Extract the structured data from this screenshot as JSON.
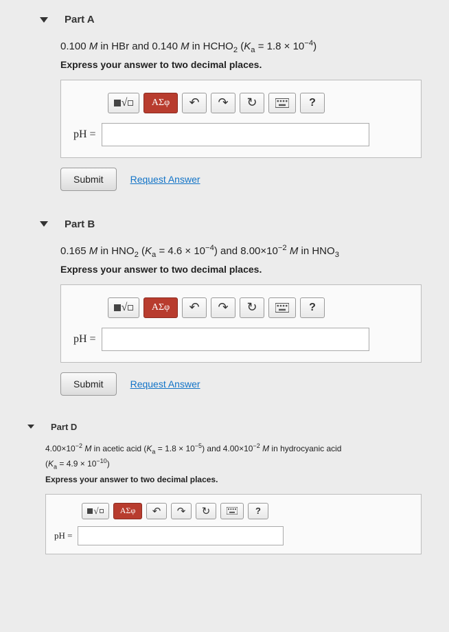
{
  "partA": {
    "title": "Part A",
    "question_html": "0.100 <span class='italic'>M</span> in HBr and 0.140 <span class='italic'>M</span> in HCHO<sub>2</sub> (<span class='italic'>K</span><sub>a</sub> = 1.8 × 10<sup>−4</sup>)",
    "instruction": "Express your answer to two decimal places.",
    "label": "pH =",
    "submit": "Submit",
    "request": "Request Answer"
  },
  "partB": {
    "title": "Part B",
    "question_html": "0.165 <span class='italic'>M</span> in HNO<sub>2</sub> (<span class='italic'>K</span><sub>a</sub> = 4.6 × 10<sup>−4</sup>) and 8.00×10<sup>−2</sup> <span class='italic'>M</span> in HNO<sub>3</sub>",
    "instruction": "Express your answer to two decimal places.",
    "label": "pH =",
    "submit": "Submit",
    "request": "Request Answer"
  },
  "partD": {
    "title": "Part D",
    "question_html": "4.00×10<sup>−2</sup> <span class='italic'>M</span> in acetic acid (<span class='italic'>K</span><sub>a</sub> = 1.8 × 10<sup>−5</sup>) and 4.00×10<sup>−2</sup> <span class='italic'>M</span> in hydrocyanic acid<br>(<span class='italic'>K</span><sub>a</sub> = 4.9 × 10<sup>−10</sup>)",
    "instruction": "Express your answer to two decimal places.",
    "label": "pH ="
  },
  "toolbar": {
    "greek": "ΑΣφ",
    "help": "?"
  },
  "colors": {
    "greek_btn": "#b83c2e",
    "link": "#1173c7",
    "bg": "#ececec",
    "box_border": "#bcbcbc"
  }
}
